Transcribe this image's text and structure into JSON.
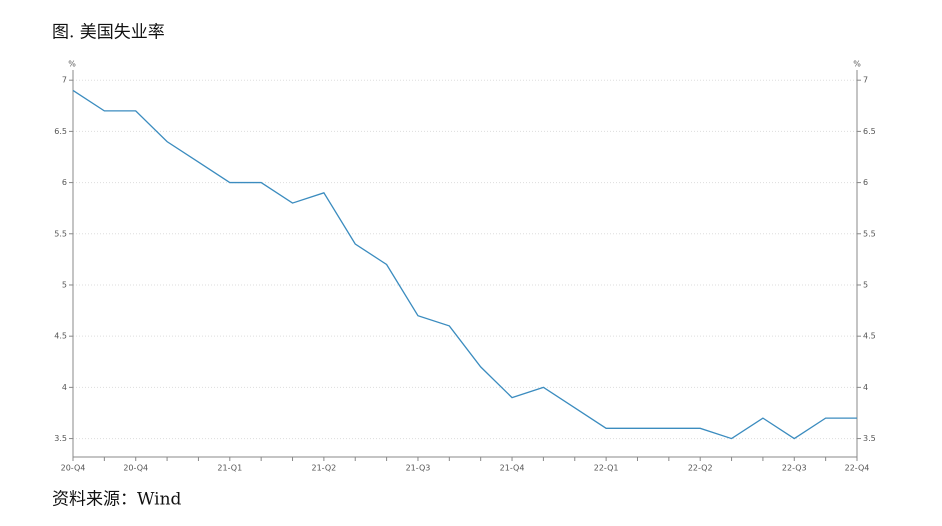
{
  "chart_data": {
    "type": "line",
    "title": "图. 美国失业率",
    "source": "资料来源：Wind",
    "y_unit": "%",
    "y2_unit": "%",
    "categories": [
      "20-Q4",
      null,
      "20-Q4",
      null,
      null,
      "21-Q1",
      null,
      null,
      "21-Q2",
      null,
      null,
      "21-Q3",
      null,
      null,
      "21-Q4",
      null,
      null,
      "22-Q1",
      null,
      null,
      "22-Q2",
      null,
      null,
      "22-Q3",
      null,
      "22-Q4"
    ],
    "series": [
      {
        "color": "#3b8cbf",
        "values": [
          6.9,
          6.7,
          6.7,
          6.4,
          6.2,
          6.0,
          6.0,
          5.8,
          5.9,
          5.4,
          5.2,
          4.7,
          4.6,
          4.2,
          3.9,
          4.0,
          3.8,
          3.6,
          3.6,
          3.6,
          3.6,
          3.5,
          3.7,
          3.5,
          3.7,
          3.7
        ]
      }
    ],
    "ylim": [
      3.32,
      7.08
    ],
    "yticks": [
      3.5,
      4,
      4.5,
      5,
      5.5,
      6,
      6.5,
      7
    ],
    "y2lim": [
      3.32,
      7.08
    ],
    "y2ticks": [
      3.5,
      4,
      4.5,
      5,
      5.5,
      6,
      6.5,
      7
    ],
    "grid": true
  }
}
